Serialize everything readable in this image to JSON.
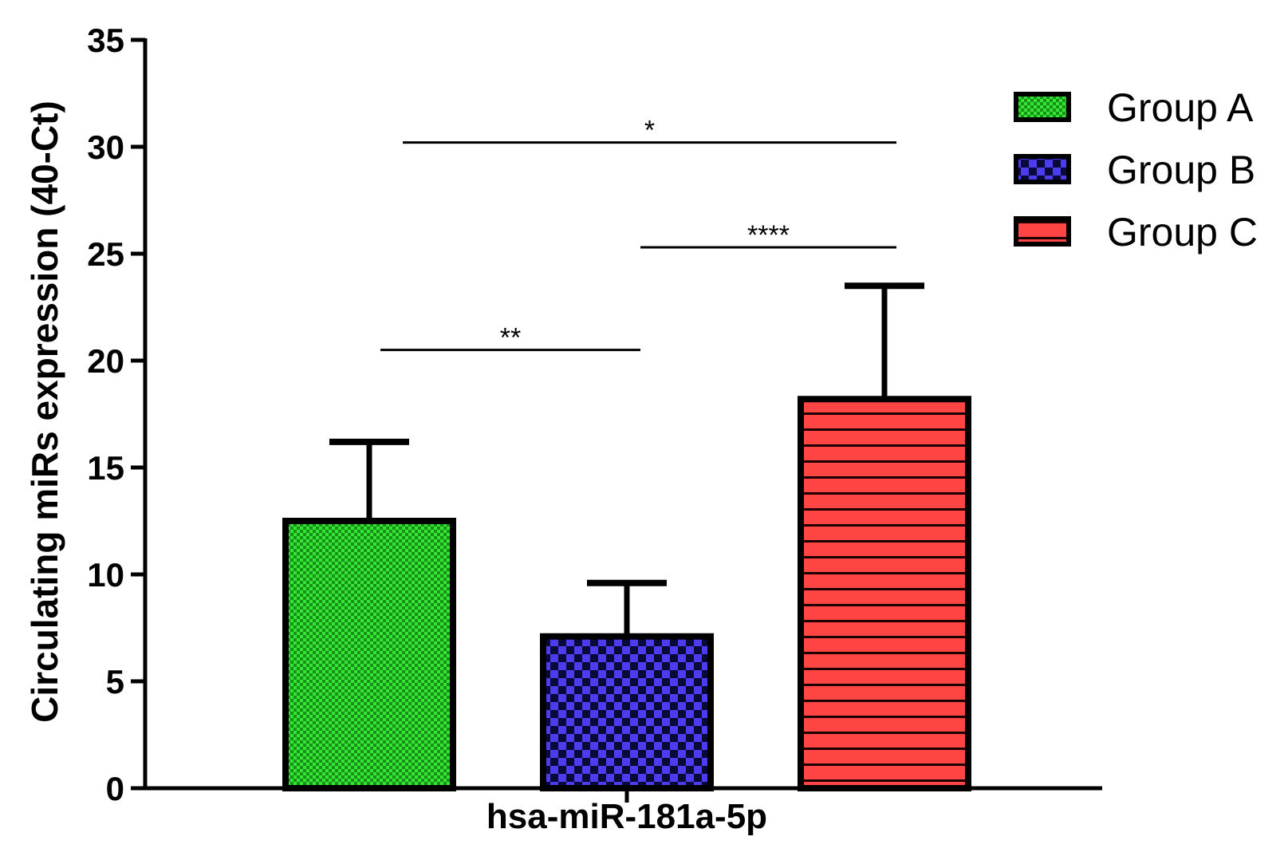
{
  "chart_data": {
    "type": "bar",
    "categories": [
      "hsa-miR-181a-5p"
    ],
    "ylabel": "Circulating miRs expression (40-Ct)",
    "xlabel": "",
    "ylim": [
      0,
      35
    ],
    "yticks": [
      0,
      5,
      10,
      15,
      20,
      25,
      30,
      35
    ],
    "grid": false,
    "legend_position": "top-right",
    "series": [
      {
        "name": "Group A",
        "value": 12.5,
        "error": 3.7,
        "color": "#33e633",
        "pattern": "fine-checker"
      },
      {
        "name": "Group B",
        "value": 7.1,
        "error": 2.5,
        "color": "#4b3cf0",
        "pattern": "checker"
      },
      {
        "name": "Group C",
        "value": 18.2,
        "error": 5.3,
        "color": "#ff4444",
        "pattern": "horizontal-stripes"
      }
    ],
    "significance": [
      {
        "from": "Group A",
        "to": "Group C",
        "label": "*",
        "y": 30.2
      },
      {
        "from": "Group B",
        "to": "Group C",
        "label": "****",
        "y": 25.3
      },
      {
        "from": "Group A",
        "to": "Group B",
        "label": "**",
        "y": 20.5
      }
    ]
  }
}
